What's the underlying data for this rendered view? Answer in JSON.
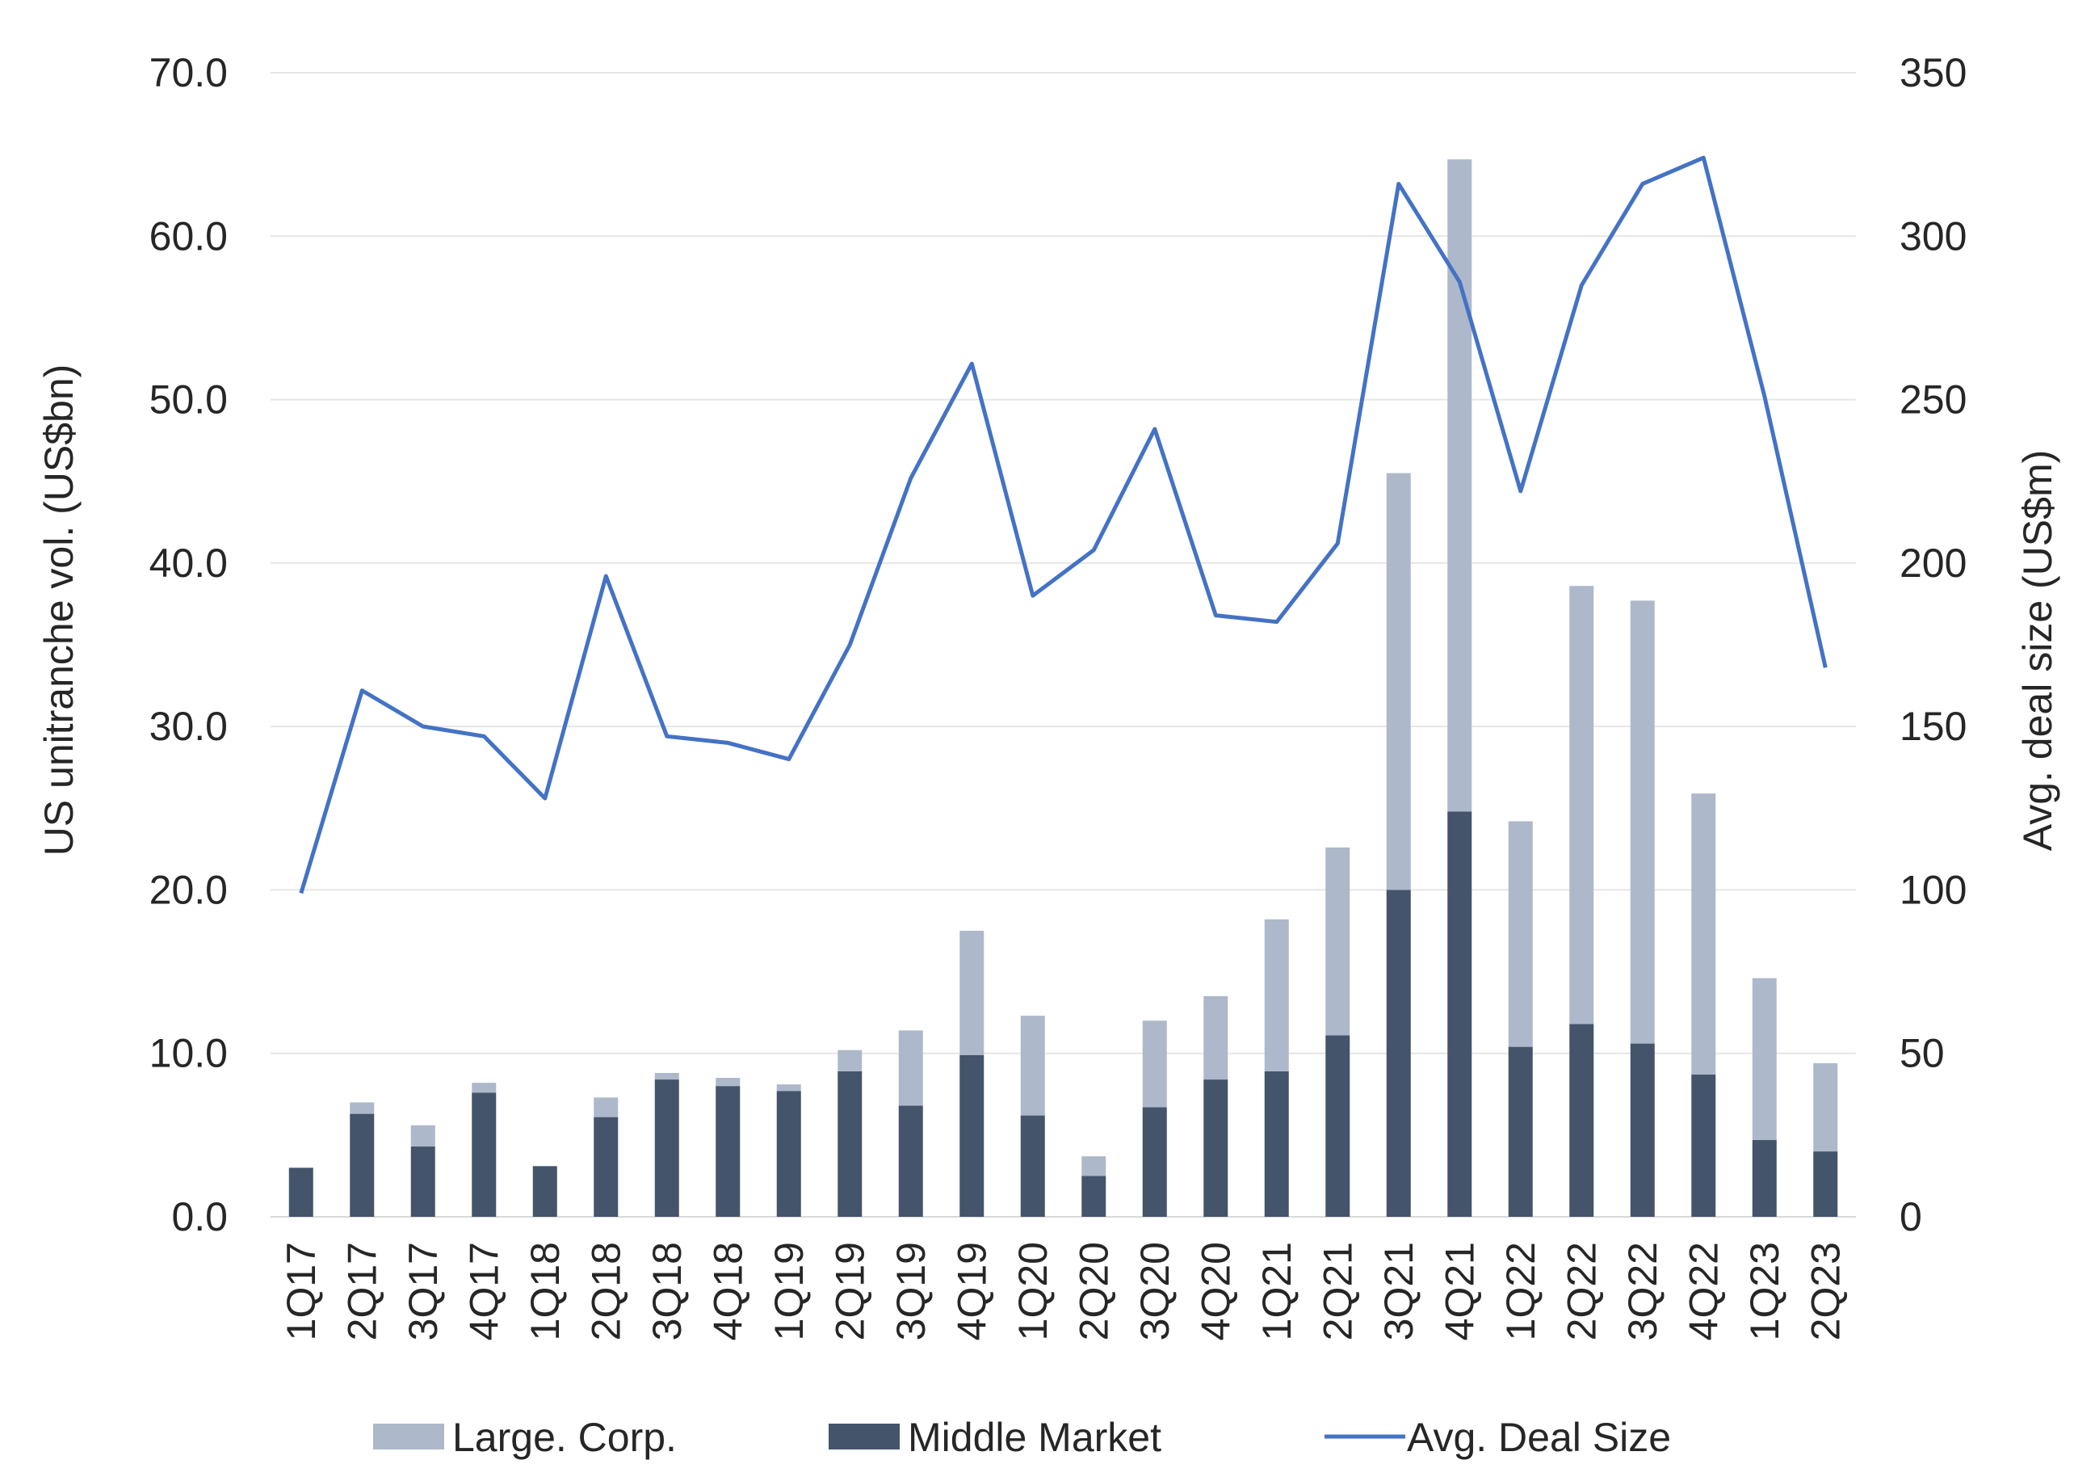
{
  "chart_data": {
    "type": "bar",
    "stacked": true,
    "categories": [
      "1Q17",
      "2Q17",
      "3Q17",
      "4Q17",
      "1Q18",
      "2Q18",
      "3Q18",
      "4Q18",
      "1Q19",
      "2Q19",
      "3Q19",
      "4Q19",
      "1Q20",
      "2Q20",
      "3Q20",
      "4Q20",
      "1Q21",
      "2Q21",
      "3Q21",
      "4Q21",
      "1Q22",
      "2Q22",
      "3Q22",
      "4Q22",
      "1Q23",
      "2Q23"
    ],
    "series": [
      {
        "name": "Middle Market",
        "type": "bar",
        "axis": "left",
        "color": "#44546a",
        "values": [
          3.0,
          6.3,
          4.3,
          7.6,
          3.1,
          6.1,
          8.4,
          8.0,
          7.7,
          8.9,
          6.8,
          9.9,
          6.2,
          2.5,
          6.7,
          8.4,
          8.9,
          11.1,
          20.0,
          24.8,
          10.4,
          11.8,
          10.6,
          8.7,
          4.7,
          4.0
        ]
      },
      {
        "name": "Large. Corp.",
        "type": "bar",
        "axis": "left",
        "color": "#adb9ca",
        "values": [
          0.0,
          0.7,
          1.3,
          0.6,
          0.0,
          1.2,
          0.4,
          0.5,
          0.4,
          1.3,
          4.6,
          7.6,
          6.1,
          1.2,
          5.3,
          5.1,
          9.3,
          11.5,
          25.5,
          39.9,
          13.8,
          26.8,
          27.1,
          17.2,
          9.9,
          5.4
        ]
      },
      {
        "name": "Avg. Deal Size",
        "type": "line",
        "axis": "right",
        "color": "#4472c4",
        "values": [
          99,
          161,
          150,
          147,
          128,
          196,
          147,
          145,
          140,
          175,
          226,
          261,
          190,
          204,
          241,
          184,
          182,
          206,
          316,
          286,
          222,
          285,
          316,
          324,
          251,
          168
        ]
      }
    ],
    "ylabel": "US unitranche vol. (US$bn)",
    "y2label": "Avg. deal size (US$m)",
    "ylim": [
      0,
      70
    ],
    "y2lim": [
      0,
      350
    ],
    "yticks": [
      "0.0",
      "10.0",
      "20.0",
      "30.0",
      "40.0",
      "50.0",
      "60.0",
      "70.0"
    ],
    "y2ticks": [
      "0",
      "50",
      "100",
      "150",
      "200",
      "250",
      "300",
      "350"
    ],
    "grid": true,
    "legend": {
      "position": "bottom",
      "entries": [
        "Large. Corp.",
        "Middle Market",
        "Avg. Deal Size"
      ]
    }
  }
}
